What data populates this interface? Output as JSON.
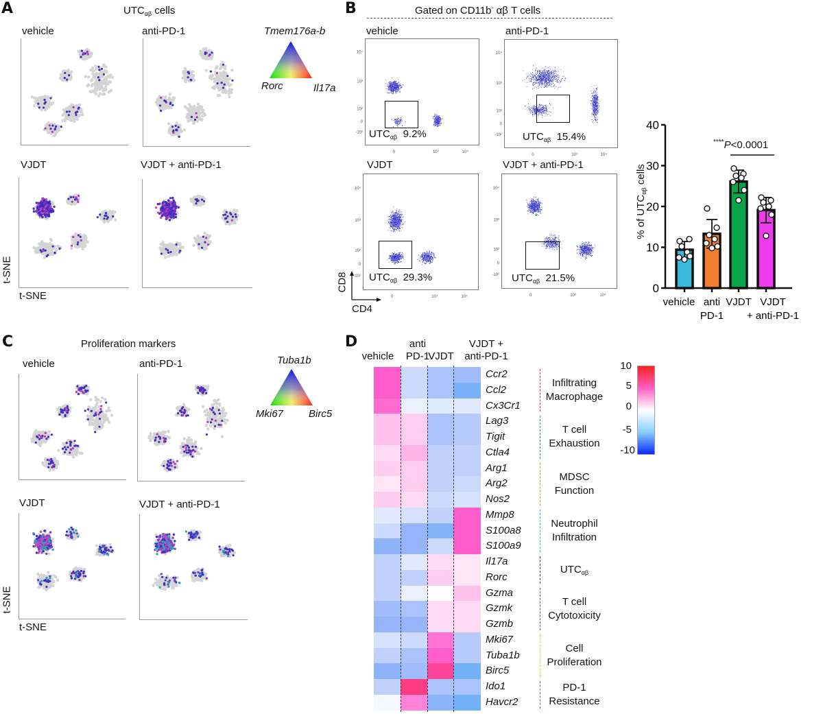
{
  "figure": {
    "panels": {
      "A": {
        "letter": "A",
        "title_main": "UTC",
        "title_sub": "αβ",
        "title_rest": " cells",
        "plots": [
          "vehicle",
          "anti-PD-1",
          "VJDT",
          "VJDT + anti-PD-1"
        ],
        "axis_x": "t-SNE",
        "axis_y": "t-SNE",
        "legend": {
          "top": "Tmem176a-b",
          "left": "Rorc",
          "right": "Il17a"
        }
      },
      "B": {
        "letter": "B",
        "title": "Gated on CD11b",
        "title_sup": "-",
        "title_rest": " αβ T cells",
        "plots": [
          {
            "label": "vehicle",
            "gate_name": "UTC",
            "gate_sub": "αβ",
            "percent": "9.2%"
          },
          {
            "label": "anti-PD-1",
            "gate_name": "UTC",
            "gate_sub": "αβ",
            "percent": "15.4%"
          },
          {
            "label": "VJDT",
            "gate_name": "UTC",
            "gate_sub": "αβ",
            "percent": "29.3%"
          },
          {
            "label": "VJDT + anti-PD-1",
            "gate_name": "UTC",
            "gate_sub": "αβ",
            "percent": "21.5%"
          }
        ],
        "axis_x": "CD4",
        "axis_y": "CD8",
        "ticks_y": [
          "10⁴",
          "10³",
          "10²",
          "0",
          "-10²"
        ],
        "ticks_x": [
          "0",
          "10³",
          "10⁴"
        ]
      },
      "C": {
        "letter": "C",
        "title": "Proliferation markers",
        "plots": [
          "vehicle",
          "anti-PD-1",
          "VJDT",
          "VJDT + anti-PD-1"
        ],
        "axis_x": "t-SNE",
        "axis_y": "t-SNE",
        "legend": {
          "top": "Tuba1b",
          "left": "Mki67",
          "right": "Birc5"
        }
      },
      "D": {
        "letter": "D",
        "colorbar": {
          "ticks": [
            "10",
            "5",
            "0",
            "-5",
            "-10"
          ],
          "range": [
            -10,
            10
          ]
        }
      }
    }
  },
  "chart_data": [
    {
      "type": "bar",
      "title": "****P<0.0001",
      "significance": {
        "stars": "****",
        "p_label": "P",
        "p_value": "<0.0001",
        "between": [
          "VJDT",
          "VJDT + anti-PD-1"
        ]
      },
      "categories": [
        "vehicle",
        "anti PD-1",
        "VJDT",
        "VJDT + anti-PD-1"
      ],
      "category_lines": [
        [
          "vehicle"
        ],
        [
          "anti",
          "PD-1"
        ],
        [
          "VJDT"
        ],
        [
          "VJDT",
          "+ anti-PD-1"
        ]
      ],
      "values": [
        9.4,
        13.3,
        26.1,
        19.1
      ],
      "errors": [
        2.0,
        3.5,
        2.8,
        3.1
      ],
      "points": [
        [
          11.5,
          12.0,
          10.2,
          8.8,
          7.5,
          7.8,
          7.0
        ],
        [
          19.5,
          14.8,
          13.0,
          12.0,
          11.0,
          10.2,
          9.8
        ],
        [
          29.3,
          28.0,
          27.5,
          27.0,
          26.0,
          24.0,
          21.5
        ],
        [
          22.2,
          21.5,
          21.0,
          20.0,
          19.5,
          18.0,
          12.8
        ]
      ],
      "colors": [
        "#3cb8dc",
        "#f07f31",
        "#0aa44b",
        "#ee3ced"
      ],
      "ylabel": "% of UTCαβ cells",
      "ylabel_main": "% of UTC",
      "ylabel_sub": "αβ",
      "ylabel_rest": " cells",
      "xlabel": "",
      "ylim": [
        0,
        40
      ],
      "yticks": [
        0,
        10,
        20,
        30,
        40
      ],
      "grid": false
    },
    {
      "type": "heatmap",
      "columns": [
        "vehicle",
        "anti PD-1",
        "VJDT",
        "VJDT + anti-PD-1"
      ],
      "column_heads": [
        [
          "",
          "vehicle"
        ],
        [
          "anti",
          "PD-1"
        ],
        [
          "",
          "VJDT"
        ],
        [
          "VJDT +",
          "anti-PD-1"
        ]
      ],
      "rows": [
        "Ccr2",
        "Ccl2",
        "Cx3Cr1",
        "Lag3",
        "Tigit",
        "Ctla4",
        "Arg1",
        "Arg2",
        "Nos2",
        "Mmp8",
        "S100a8",
        "S100a9",
        "Il17a",
        "Rorc",
        "Gzma",
        "Gzmk",
        "Gzmb",
        "Mki67",
        "Tuba1b",
        "Birc5",
        "Ido1",
        "Havcr2"
      ],
      "values": [
        [
          6.5,
          -2.5,
          -4.0,
          -4.5
        ],
        [
          6.5,
          -2.5,
          -4.0,
          -6.5
        ],
        [
          6.0,
          -1.0,
          -1.5,
          -1.5
        ],
        [
          2.5,
          2.0,
          -4.0,
          -3.5
        ],
        [
          2.5,
          2.0,
          -4.0,
          -3.5
        ],
        [
          1.5,
          3.0,
          -3.0,
          -3.0
        ],
        [
          2.0,
          2.0,
          -3.0,
          -3.0
        ],
        [
          1.0,
          2.0,
          -3.0,
          -2.5
        ],
        [
          2.0,
          1.5,
          -2.5,
          -2.0
        ],
        [
          -1.5,
          -2.0,
          -3.0,
          6.5
        ],
        [
          -2.5,
          -5.0,
          -6.0,
          6.5
        ],
        [
          -5.5,
          -5.0,
          -2.5,
          6.5
        ],
        [
          -3.0,
          -1.5,
          1.5,
          1.0
        ],
        [
          -3.0,
          -3.0,
          2.0,
          1.0
        ],
        [
          -3.0,
          -1.0,
          0.0,
          2.5
        ],
        [
          -4.5,
          -4.0,
          1.5,
          1.5
        ],
        [
          -5.0,
          -5.0,
          1.5,
          1.5
        ],
        [
          -2.0,
          -2.5,
          5.5,
          -3.5
        ],
        [
          -3.0,
          -4.0,
          6.5,
          -3.5
        ],
        [
          -5.5,
          -4.5,
          8.0,
          -7.0
        ],
        [
          -3.0,
          8.5,
          -4.0,
          -4.0
        ],
        [
          -0.5,
          5.0,
          -5.5,
          -7.0
        ]
      ],
      "groups": [
        {
          "label": [
            "Infiltrating",
            "Macrophage"
          ],
          "rows": [
            0,
            2
          ],
          "color": "#d0303a"
        },
        {
          "label": [
            "T cell",
            "Exhaustion"
          ],
          "rows": [
            3,
            5
          ],
          "color": "#16a34a"
        },
        {
          "label": [
            "MDSC",
            "Function"
          ],
          "rows": [
            6,
            8
          ],
          "color": "#ee8a2c"
        },
        {
          "label": [
            "Neutrophil",
            "Infiltration"
          ],
          "rows": [
            9,
            11
          ],
          "color": "#22b5e0"
        },
        {
          "label": [
            "UTCαβ"
          ],
          "label_main": "UTC",
          "label_sub": "αβ",
          "rows": [
            12,
            13
          ],
          "color": "#28306e"
        },
        {
          "label": [
            "T cell",
            "Cytotoxicity"
          ],
          "rows": [
            14,
            16
          ],
          "color": "#7b3fb8"
        },
        {
          "label": [
            "Cell",
            "Proliferation"
          ],
          "rows": [
            17,
            19
          ],
          "color": "#f2cc24"
        },
        {
          "label": [
            "PD-1",
            "Resistance"
          ],
          "rows": [
            20,
            21
          ],
          "color": "#3e8a3e"
        }
      ],
      "colorbar_range": [
        -10,
        10
      ],
      "colorbar_ticks": [
        10,
        5,
        0,
        -5,
        -10
      ]
    }
  ]
}
